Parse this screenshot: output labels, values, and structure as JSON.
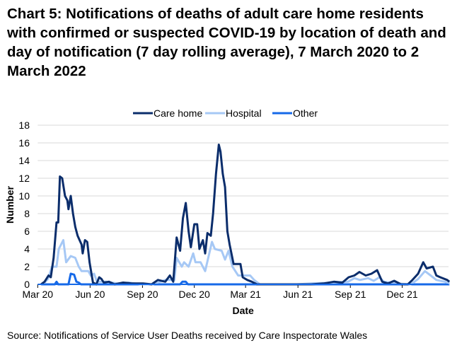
{
  "chart_data": {
    "type": "line",
    "title": "Chart 5: Notifications of deaths of adult care home residents with confirmed or suspected COVID-19 by location of death and day of notification (7 day rolling average), 7 March 2020 to 2 March 2022",
    "xlabel": "Date",
    "ylabel": "Number",
    "ylim": [
      0,
      18
    ],
    "yticks": [
      0,
      2,
      4,
      6,
      8,
      10,
      12,
      14,
      16,
      18
    ],
    "x_unit": "days since 1 March 2020",
    "xlim": [
      0,
      731
    ],
    "xticks": [
      {
        "label": "Mar 20",
        "day": 0
      },
      {
        "label": "Jun 20",
        "day": 92
      },
      {
        "label": "Sep 20",
        "day": 184
      },
      {
        "label": "Dec 20",
        "day": 275
      },
      {
        "label": "Mar 21",
        "day": 365
      },
      {
        "label": "Jun 21",
        "day": 457
      },
      {
        "label": "Sep 21",
        "day": 549
      },
      {
        "label": "Dec 21",
        "day": 640
      }
    ],
    "grid": true,
    "legend_position": "top",
    "series": [
      {
        "name": "Care home",
        "color": "#0b2d6b",
        "points": [
          [
            6,
            0
          ],
          [
            12,
            0.3
          ],
          [
            19,
            1
          ],
          [
            23,
            0.8
          ],
          [
            28,
            3
          ],
          [
            33,
            7
          ],
          [
            36,
            7
          ],
          [
            39,
            12.2
          ],
          [
            43,
            12
          ],
          [
            48,
            10
          ],
          [
            52,
            9.5
          ],
          [
            54,
            8.5
          ],
          [
            58,
            10
          ],
          [
            62,
            8
          ],
          [
            66,
            6.5
          ],
          [
            70,
            5.5
          ],
          [
            77,
            4.5
          ],
          [
            79,
            3.5
          ],
          [
            83,
            5
          ],
          [
            87,
            4.8
          ],
          [
            91,
            2.5
          ],
          [
            97,
            0.2
          ],
          [
            103,
            0
          ],
          [
            108,
            0.8
          ],
          [
            112,
            0.6
          ],
          [
            116,
            0.2
          ],
          [
            125,
            0.3
          ],
          [
            135,
            0
          ],
          [
            150,
            0.2
          ],
          [
            165,
            0.1
          ],
          [
            185,
            0.1
          ],
          [
            200,
            0
          ],
          [
            211,
            0.5
          ],
          [
            224,
            0.3
          ],
          [
            232,
            1
          ],
          [
            238,
            0.3
          ],
          [
            244,
            5.3
          ],
          [
            250,
            3.8
          ],
          [
            255,
            7.5
          ],
          [
            260,
            9.2
          ],
          [
            265,
            6
          ],
          [
            269,
            4.2
          ],
          [
            275,
            6.8
          ],
          [
            280,
            6.8
          ],
          [
            284,
            4
          ],
          [
            290,
            5
          ],
          [
            294,
            3.5
          ],
          [
            298,
            5.8
          ],
          [
            304,
            5.5
          ],
          [
            308,
            8
          ],
          [
            313,
            12.5
          ],
          [
            318,
            15.8
          ],
          [
            321,
            15
          ],
          [
            325,
            12.5
          ],
          [
            329,
            11
          ],
          [
            333,
            6
          ],
          [
            337,
            4.5
          ],
          [
            344,
            2.3
          ],
          [
            356,
            2.3
          ],
          [
            360,
            0.8
          ],
          [
            368,
            0.5
          ],
          [
            376,
            0.3
          ],
          [
            385,
            0
          ],
          [
            480,
            0
          ],
          [
            502,
            0.1
          ],
          [
            520,
            0.3
          ],
          [
            535,
            0.2
          ],
          [
            546,
            0.8
          ],
          [
            556,
            1
          ],
          [
            565,
            1.4
          ],
          [
            576,
            1
          ],
          [
            586,
            1.2
          ],
          [
            596,
            1.6
          ],
          [
            605,
            0.3
          ],
          [
            615,
            0.1
          ],
          [
            626,
            0.4
          ],
          [
            638,
            0
          ],
          [
            650,
            0
          ],
          [
            658,
            0.5
          ],
          [
            668,
            1.2
          ],
          [
            677,
            2.5
          ],
          [
            683,
            1.8
          ],
          [
            694,
            2
          ],
          [
            700,
            1
          ],
          [
            707,
            0.8
          ],
          [
            719,
            0.5
          ],
          [
            723,
            0.3
          ]
        ]
      },
      {
        "name": "Hospital",
        "color": "#a6c8f5",
        "points": [
          [
            6,
            0
          ],
          [
            12,
            0.2
          ],
          [
            18,
            0.6
          ],
          [
            25,
            2
          ],
          [
            33,
            2
          ],
          [
            37,
            4
          ],
          [
            45,
            5
          ],
          [
            50,
            2.5
          ],
          [
            58,
            3.2
          ],
          [
            66,
            3
          ],
          [
            72,
            2
          ],
          [
            77,
            1.5
          ],
          [
            89,
            1.5
          ],
          [
            93,
            1
          ],
          [
            99,
            1.2
          ],
          [
            104,
            0.3
          ],
          [
            120,
            0.3
          ],
          [
            141,
            0.1
          ],
          [
            160,
            0.2
          ],
          [
            180,
            0
          ],
          [
            203,
            0
          ],
          [
            215,
            0.3
          ],
          [
            224,
            0.5
          ],
          [
            240,
            0.5
          ],
          [
            244,
            3
          ],
          [
            253,
            2
          ],
          [
            257,
            2.5
          ],
          [
            265,
            2
          ],
          [
            273,
            3.5
          ],
          [
            277,
            2.5
          ],
          [
            286,
            2.5
          ],
          [
            294,
            1.5
          ],
          [
            306,
            4.8
          ],
          [
            311,
            4
          ],
          [
            323,
            3.8
          ],
          [
            329,
            2.8
          ],
          [
            335,
            3.8
          ],
          [
            342,
            2
          ],
          [
            352,
            1
          ],
          [
            364,
            1
          ],
          [
            373,
            1
          ],
          [
            380,
            0.5
          ],
          [
            390,
            0
          ],
          [
            455,
            0
          ],
          [
            480,
            0.1
          ],
          [
            520,
            0.2
          ],
          [
            545,
            0.3
          ],
          [
            556,
            0.7
          ],
          [
            566,
            0.5
          ],
          [
            580,
            0.7
          ],
          [
            590,
            0.4
          ],
          [
            600,
            0.8
          ],
          [
            608,
            0.3
          ],
          [
            630,
            0.1
          ],
          [
            655,
            0
          ],
          [
            668,
            0.6
          ],
          [
            680,
            1.5
          ],
          [
            690,
            1
          ],
          [
            700,
            0.5
          ],
          [
            715,
            0.3
          ],
          [
            723,
            0.1
          ]
        ]
      },
      {
        "name": "Other",
        "color": "#1669e8",
        "points": [
          [
            6,
            0
          ],
          [
            30,
            0
          ],
          [
            33,
            0.3
          ],
          [
            36,
            0
          ],
          [
            54,
            0
          ],
          [
            58,
            1.2
          ],
          [
            64,
            1.1
          ],
          [
            68,
            0.3
          ],
          [
            72,
            0.2
          ],
          [
            76,
            0
          ],
          [
            250,
            0
          ],
          [
            254,
            0.3
          ],
          [
            260,
            0.3
          ],
          [
            264,
            0
          ],
          [
            723,
            0
          ]
        ]
      }
    ]
  },
  "source": "Source: Notifications of Service User Deaths received by Care Inspectorate Wales"
}
